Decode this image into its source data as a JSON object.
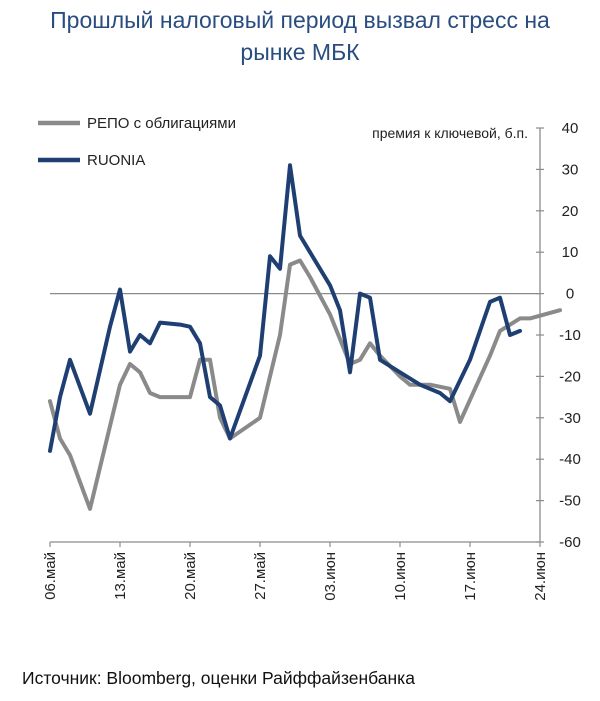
{
  "title_lines": [
    "Прошлый налоговый период вызвал стресс на",
    "рынке МБК"
  ],
  "source": "Источник: Bloomberg, оценки Райффайзенбанка",
  "colors": {
    "title": "#2a4d80",
    "repo": "#8a8a8a",
    "ruonia": "#1f3f73",
    "axis": "#8c8c8c"
  },
  "chart_data": {
    "type": "line",
    "ylabel": "премия к ключевой, б.п.",
    "ylim": [
      -60,
      40
    ],
    "yticks": [
      40,
      30,
      20,
      10,
      0,
      -10,
      -20,
      -30,
      -40,
      -50,
      -60
    ],
    "x_start": "06.май",
    "x_end": "24.июн",
    "xticks": [
      {
        "label": "06.май",
        "day": 0
      },
      {
        "label": "13.май",
        "day": 7
      },
      {
        "label": "20.май",
        "day": 14
      },
      {
        "label": "27.май",
        "day": 21
      },
      {
        "label": "03.июн",
        "day": 28
      },
      {
        "label": "10.июн",
        "day": 35
      },
      {
        "label": "17.июн",
        "day": 42
      },
      {
        "label": "24.июн",
        "day": 49
      }
    ],
    "legend_position": "top-left",
    "series": [
      {
        "name": "РЕПО с облигациями",
        "points": [
          [
            0,
            -26
          ],
          [
            1,
            -35
          ],
          [
            2,
            -39
          ],
          [
            4,
            -52
          ],
          [
            7,
            -22
          ],
          [
            8,
            -17
          ],
          [
            9,
            -19
          ],
          [
            10,
            -24
          ],
          [
            11,
            -25
          ],
          [
            14,
            -25
          ],
          [
            15,
            -16
          ],
          [
            16,
            -16
          ],
          [
            17,
            -30
          ],
          [
            18,
            -35
          ],
          [
            21,
            -30
          ],
          [
            22,
            -20
          ],
          [
            23,
            -10
          ],
          [
            24,
            7
          ],
          [
            25,
            8
          ],
          [
            26,
            4
          ],
          [
            28,
            -5
          ],
          [
            30,
            -17
          ],
          [
            31,
            -16
          ],
          [
            32,
            -12
          ],
          [
            33,
            -15
          ],
          [
            35,
            -20
          ],
          [
            36,
            -22
          ],
          [
            38,
            -22
          ],
          [
            40,
            -23
          ],
          [
            41,
            -31
          ],
          [
            44,
            -15
          ],
          [
            45,
            -9
          ],
          [
            47,
            -6
          ],
          [
            48,
            -6
          ],
          [
            51,
            -4
          ]
        ]
      },
      {
        "name": "RUONIA",
        "points": [
          [
            0,
            -38
          ],
          [
            1,
            -25
          ],
          [
            2,
            -16
          ],
          [
            4,
            -29
          ],
          [
            6,
            -8
          ],
          [
            7,
            1
          ],
          [
            8,
            -14
          ],
          [
            9,
            -10
          ],
          [
            10,
            -12
          ],
          [
            11,
            -7
          ],
          [
            13,
            -7.5
          ],
          [
            14,
            -8
          ],
          [
            15,
            -12
          ],
          [
            16,
            -25
          ],
          [
            17,
            -27
          ],
          [
            18,
            -35
          ],
          [
            21,
            -15
          ],
          [
            22,
            9
          ],
          [
            23,
            6
          ],
          [
            24,
            31
          ],
          [
            25,
            14
          ],
          [
            26,
            10
          ],
          [
            28,
            2
          ],
          [
            29,
            -4
          ],
          [
            30,
            -19
          ],
          [
            31,
            0
          ],
          [
            32,
            -1
          ],
          [
            33,
            -16
          ],
          [
            35,
            -19
          ],
          [
            37,
            -22
          ],
          [
            39,
            -24
          ],
          [
            40,
            -26
          ],
          [
            42,
            -16
          ],
          [
            44,
            -2
          ],
          [
            45,
            -1
          ],
          [
            46,
            -10
          ],
          [
            47,
            -9
          ]
        ]
      }
    ]
  }
}
